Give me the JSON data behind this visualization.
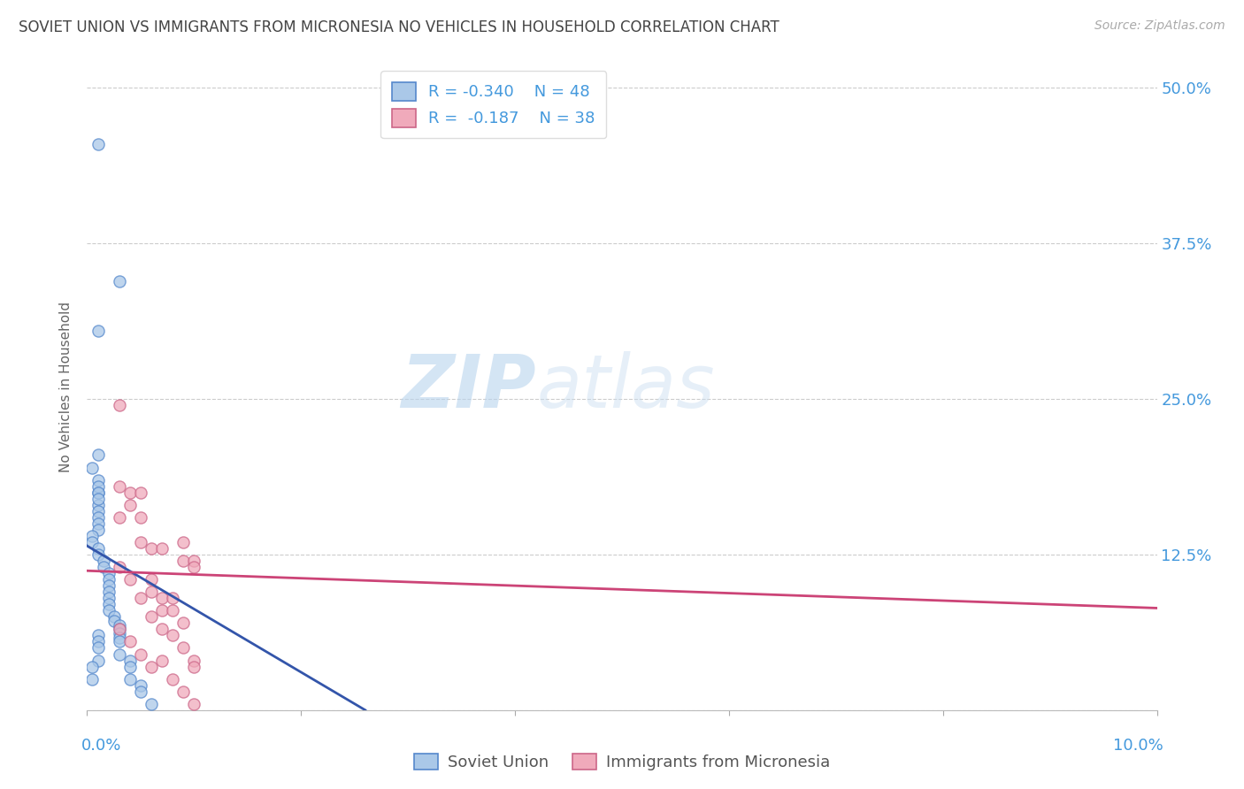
{
  "title": "SOVIET UNION VS IMMIGRANTS FROM MICRONESIA NO VEHICLES IN HOUSEHOLD CORRELATION CHART",
  "source": "Source: ZipAtlas.com",
  "ylabel": "No Vehicles in Household",
  "watermark_zip": "ZIP",
  "watermark_atlas": "atlas",
  "legend_line1": "R = -0.340   N = 48",
  "legend_line2": "R =  -0.187   N = 38",
  "blue_color": "#aac8e8",
  "blue_edge_color": "#5588cc",
  "blue_line_color": "#3355aa",
  "pink_color": "#f0aabb",
  "pink_edge_color": "#cc6688",
  "pink_line_color": "#cc4477",
  "axis_label_color": "#4499dd",
  "title_color": "#444444",
  "grid_color": "#cccccc",
  "background_color": "#ffffff",
  "blue_scatter_x": [
    0.001,
    0.003,
    0.001,
    0.001,
    0.0005,
    0.001,
    0.001,
    0.001,
    0.001,
    0.001,
    0.001,
    0.001,
    0.0005,
    0.0005,
    0.001,
    0.001,
    0.0015,
    0.0015,
    0.002,
    0.002,
    0.002,
    0.002,
    0.002,
    0.002,
    0.002,
    0.0025,
    0.0025,
    0.003,
    0.003,
    0.003,
    0.003,
    0.003,
    0.003,
    0.004,
    0.004,
    0.004,
    0.005,
    0.005,
    0.006,
    0.001,
    0.001,
    0.001,
    0.001,
    0.001,
    0.001,
    0.001,
    0.0005,
    0.0005
  ],
  "blue_scatter_y": [
    0.455,
    0.345,
    0.305,
    0.205,
    0.195,
    0.185,
    0.175,
    0.165,
    0.16,
    0.155,
    0.15,
    0.145,
    0.14,
    0.135,
    0.13,
    0.125,
    0.12,
    0.115,
    0.11,
    0.105,
    0.1,
    0.095,
    0.09,
    0.085,
    0.08,
    0.075,
    0.072,
    0.068,
    0.065,
    0.062,
    0.058,
    0.055,
    0.045,
    0.04,
    0.035,
    0.025,
    0.02,
    0.015,
    0.005,
    0.18,
    0.175,
    0.17,
    0.06,
    0.055,
    0.05,
    0.04,
    0.035,
    0.025
  ],
  "pink_scatter_x": [
    0.003,
    0.003,
    0.003,
    0.004,
    0.004,
    0.005,
    0.005,
    0.005,
    0.006,
    0.006,
    0.006,
    0.007,
    0.007,
    0.007,
    0.008,
    0.008,
    0.009,
    0.009,
    0.01,
    0.01,
    0.003,
    0.004,
    0.005,
    0.006,
    0.007,
    0.008,
    0.009,
    0.01,
    0.003,
    0.004,
    0.005,
    0.006,
    0.008,
    0.009,
    0.01,
    0.007,
    0.009,
    0.01
  ],
  "pink_scatter_y": [
    0.245,
    0.18,
    0.155,
    0.175,
    0.165,
    0.175,
    0.155,
    0.135,
    0.13,
    0.105,
    0.095,
    0.13,
    0.09,
    0.08,
    0.09,
    0.08,
    0.135,
    0.12,
    0.12,
    0.115,
    0.115,
    0.105,
    0.09,
    0.075,
    0.065,
    0.06,
    0.05,
    0.04,
    0.065,
    0.055,
    0.045,
    0.035,
    0.025,
    0.015,
    0.005,
    0.04,
    0.07,
    0.035
  ],
  "blue_line_x": [
    0.0,
    0.026
  ],
  "blue_line_y": [
    0.132,
    0.0
  ],
  "pink_line_x": [
    0.0,
    0.1
  ],
  "pink_line_y": [
    0.112,
    0.082
  ],
  "xmin": 0.0,
  "xmax": 0.1,
  "ymin": 0.0,
  "ymax": 0.52,
  "ytick_values": [
    0.0,
    0.125,
    0.25,
    0.375,
    0.5
  ],
  "ytick_labels": [
    "",
    "12.5%",
    "25.0%",
    "37.5%",
    "50.0%"
  ],
  "xtick_values": [
    0.0,
    0.02,
    0.04,
    0.06,
    0.08,
    0.1
  ],
  "marker_size": 90
}
